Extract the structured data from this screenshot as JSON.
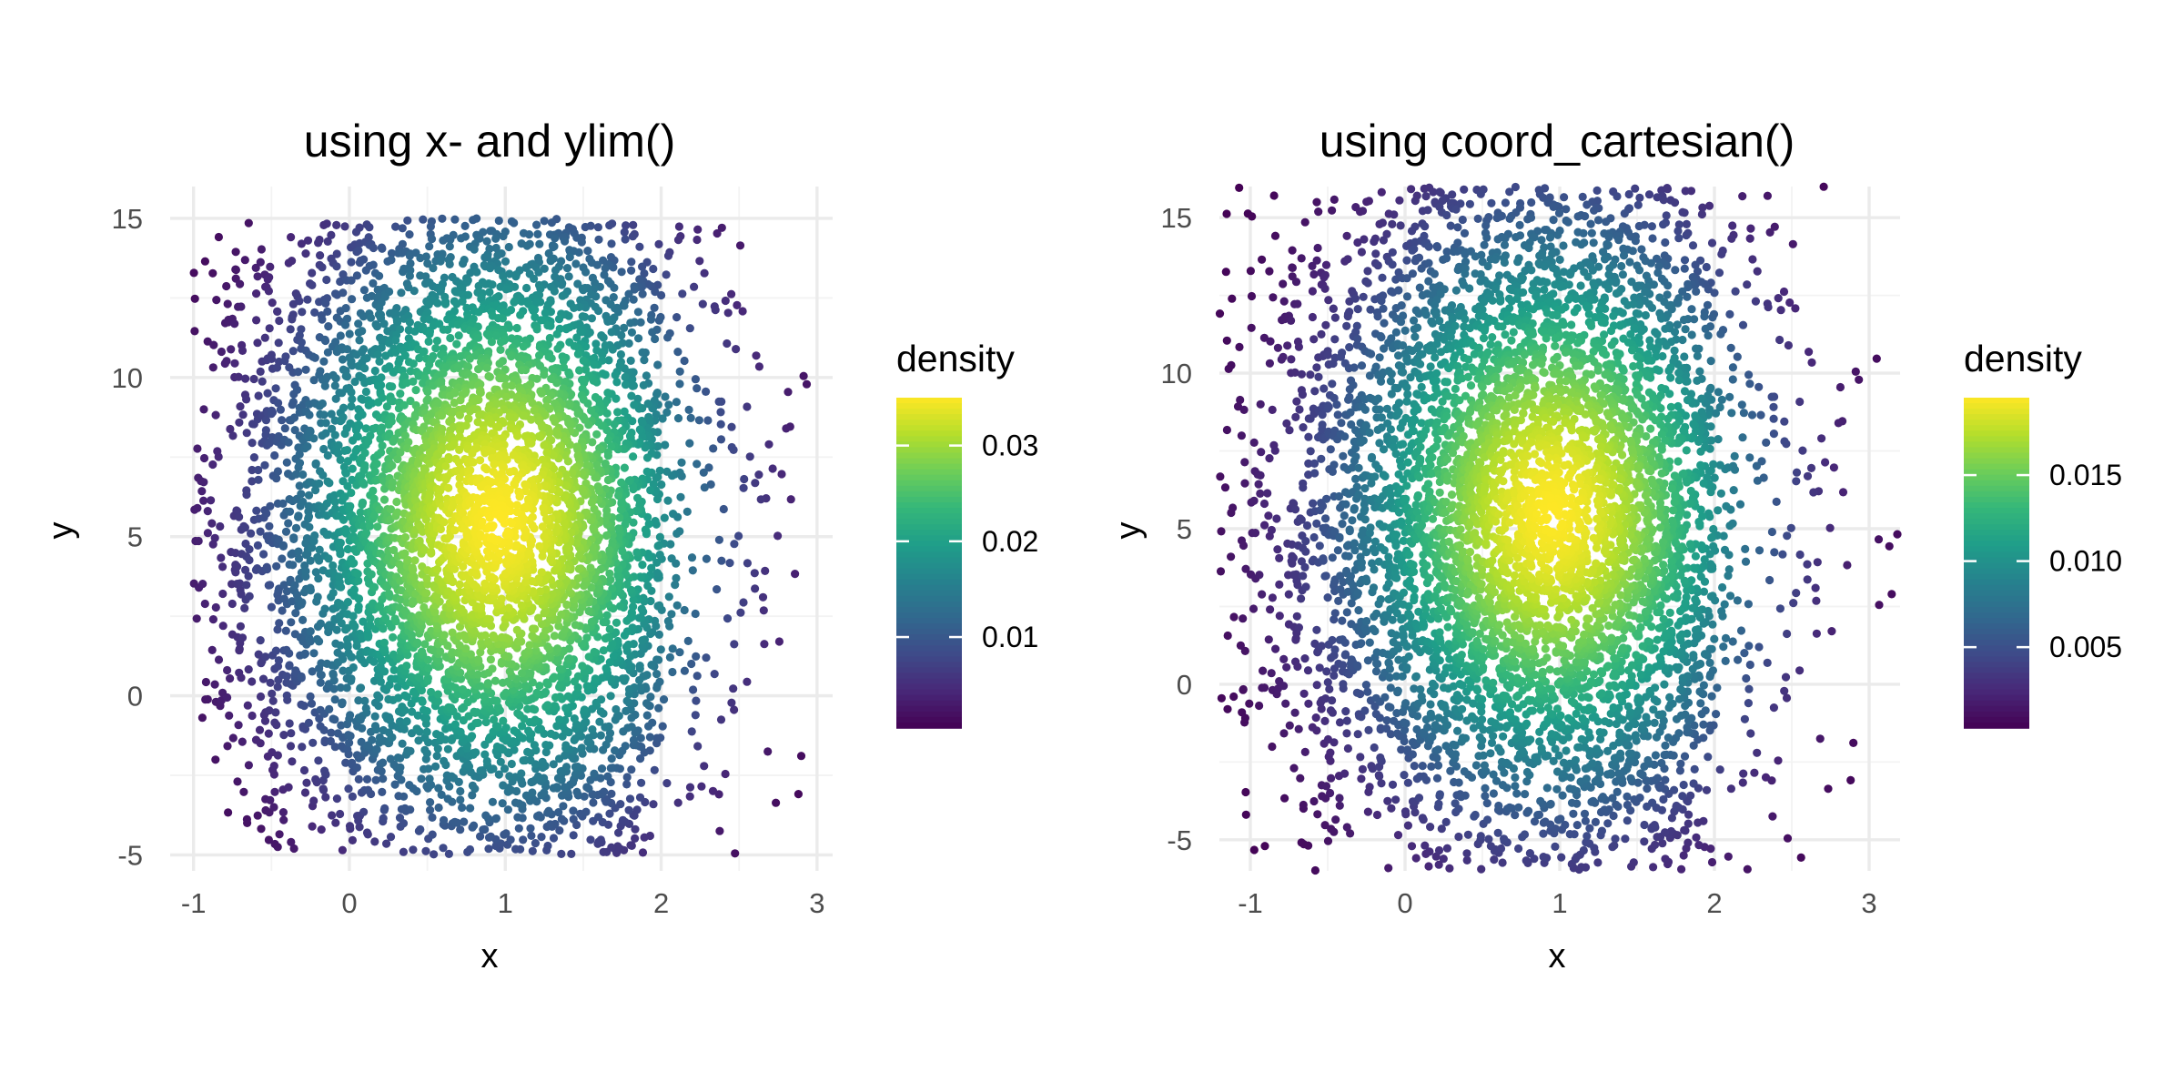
{
  "chart_data": [
    {
      "type": "scatter",
      "title": "using x- and ylim()",
      "xlabel": "x",
      "ylabel": "y",
      "xlim": [
        -1.15,
        3.1
      ],
      "ylim": [
        -5.5,
        16.0
      ],
      "x_ticks": [
        -1,
        0,
        1,
        2,
        3
      ],
      "x_tick_labels": [
        "-1",
        "0",
        "1",
        "2",
        "3"
      ],
      "y_ticks": [
        -5,
        0,
        5,
        10,
        15
      ],
      "y_tick_labels": [
        "-5",
        "0",
        "5",
        "10",
        "15"
      ],
      "grid": true,
      "colorbar": {
        "title": "density",
        "range": [
          0.0005,
          0.035
        ],
        "ticks": [
          0.01,
          0.02,
          0.03
        ],
        "tick_labels": [
          "0.01",
          "0.02",
          "0.03"
        ],
        "palette": "viridis"
      },
      "clipping": "points outside x -1..3 and y -5..15 removed",
      "distribution": {
        "x_mean": 0.95,
        "x_sd": 0.9,
        "y_mean": 5.5,
        "y_sd": 6.2,
        "x_range": [
          -1,
          3
        ],
        "y_range": [
          -5,
          15
        ]
      },
      "legend_position": "right"
    },
    {
      "type": "scatter",
      "title": "using coord_cartesian()",
      "xlabel": "x",
      "ylabel": "y",
      "xlim": [
        -1.2,
        3.2
      ],
      "ylim": [
        -6.0,
        16.0
      ],
      "x_ticks": [
        -1,
        0,
        1,
        2,
        3
      ],
      "x_tick_labels": [
        "-1",
        "0",
        "1",
        "2",
        "3"
      ],
      "y_ticks": [
        -5,
        0,
        5,
        10,
        15
      ],
      "y_tick_labels": [
        "-5",
        "0",
        "5",
        "10",
        "15"
      ],
      "grid": true,
      "colorbar": {
        "title": "density",
        "range": [
          0.0003,
          0.0195
        ],
        "ticks": [
          0.005,
          0.01,
          0.015
        ],
        "tick_labels": [
          "0.005",
          "0.010",
          "0.015"
        ],
        "palette": "viridis"
      },
      "clipping": "view zoomed, data not removed",
      "distribution": {
        "x_mean": 0.95,
        "x_sd": 0.9,
        "y_mean": 5.5,
        "y_sd": 6.2,
        "x_range": [
          -1.2,
          3.2
        ],
        "y_range": [
          -6,
          16
        ]
      },
      "legend_position": "right"
    }
  ]
}
